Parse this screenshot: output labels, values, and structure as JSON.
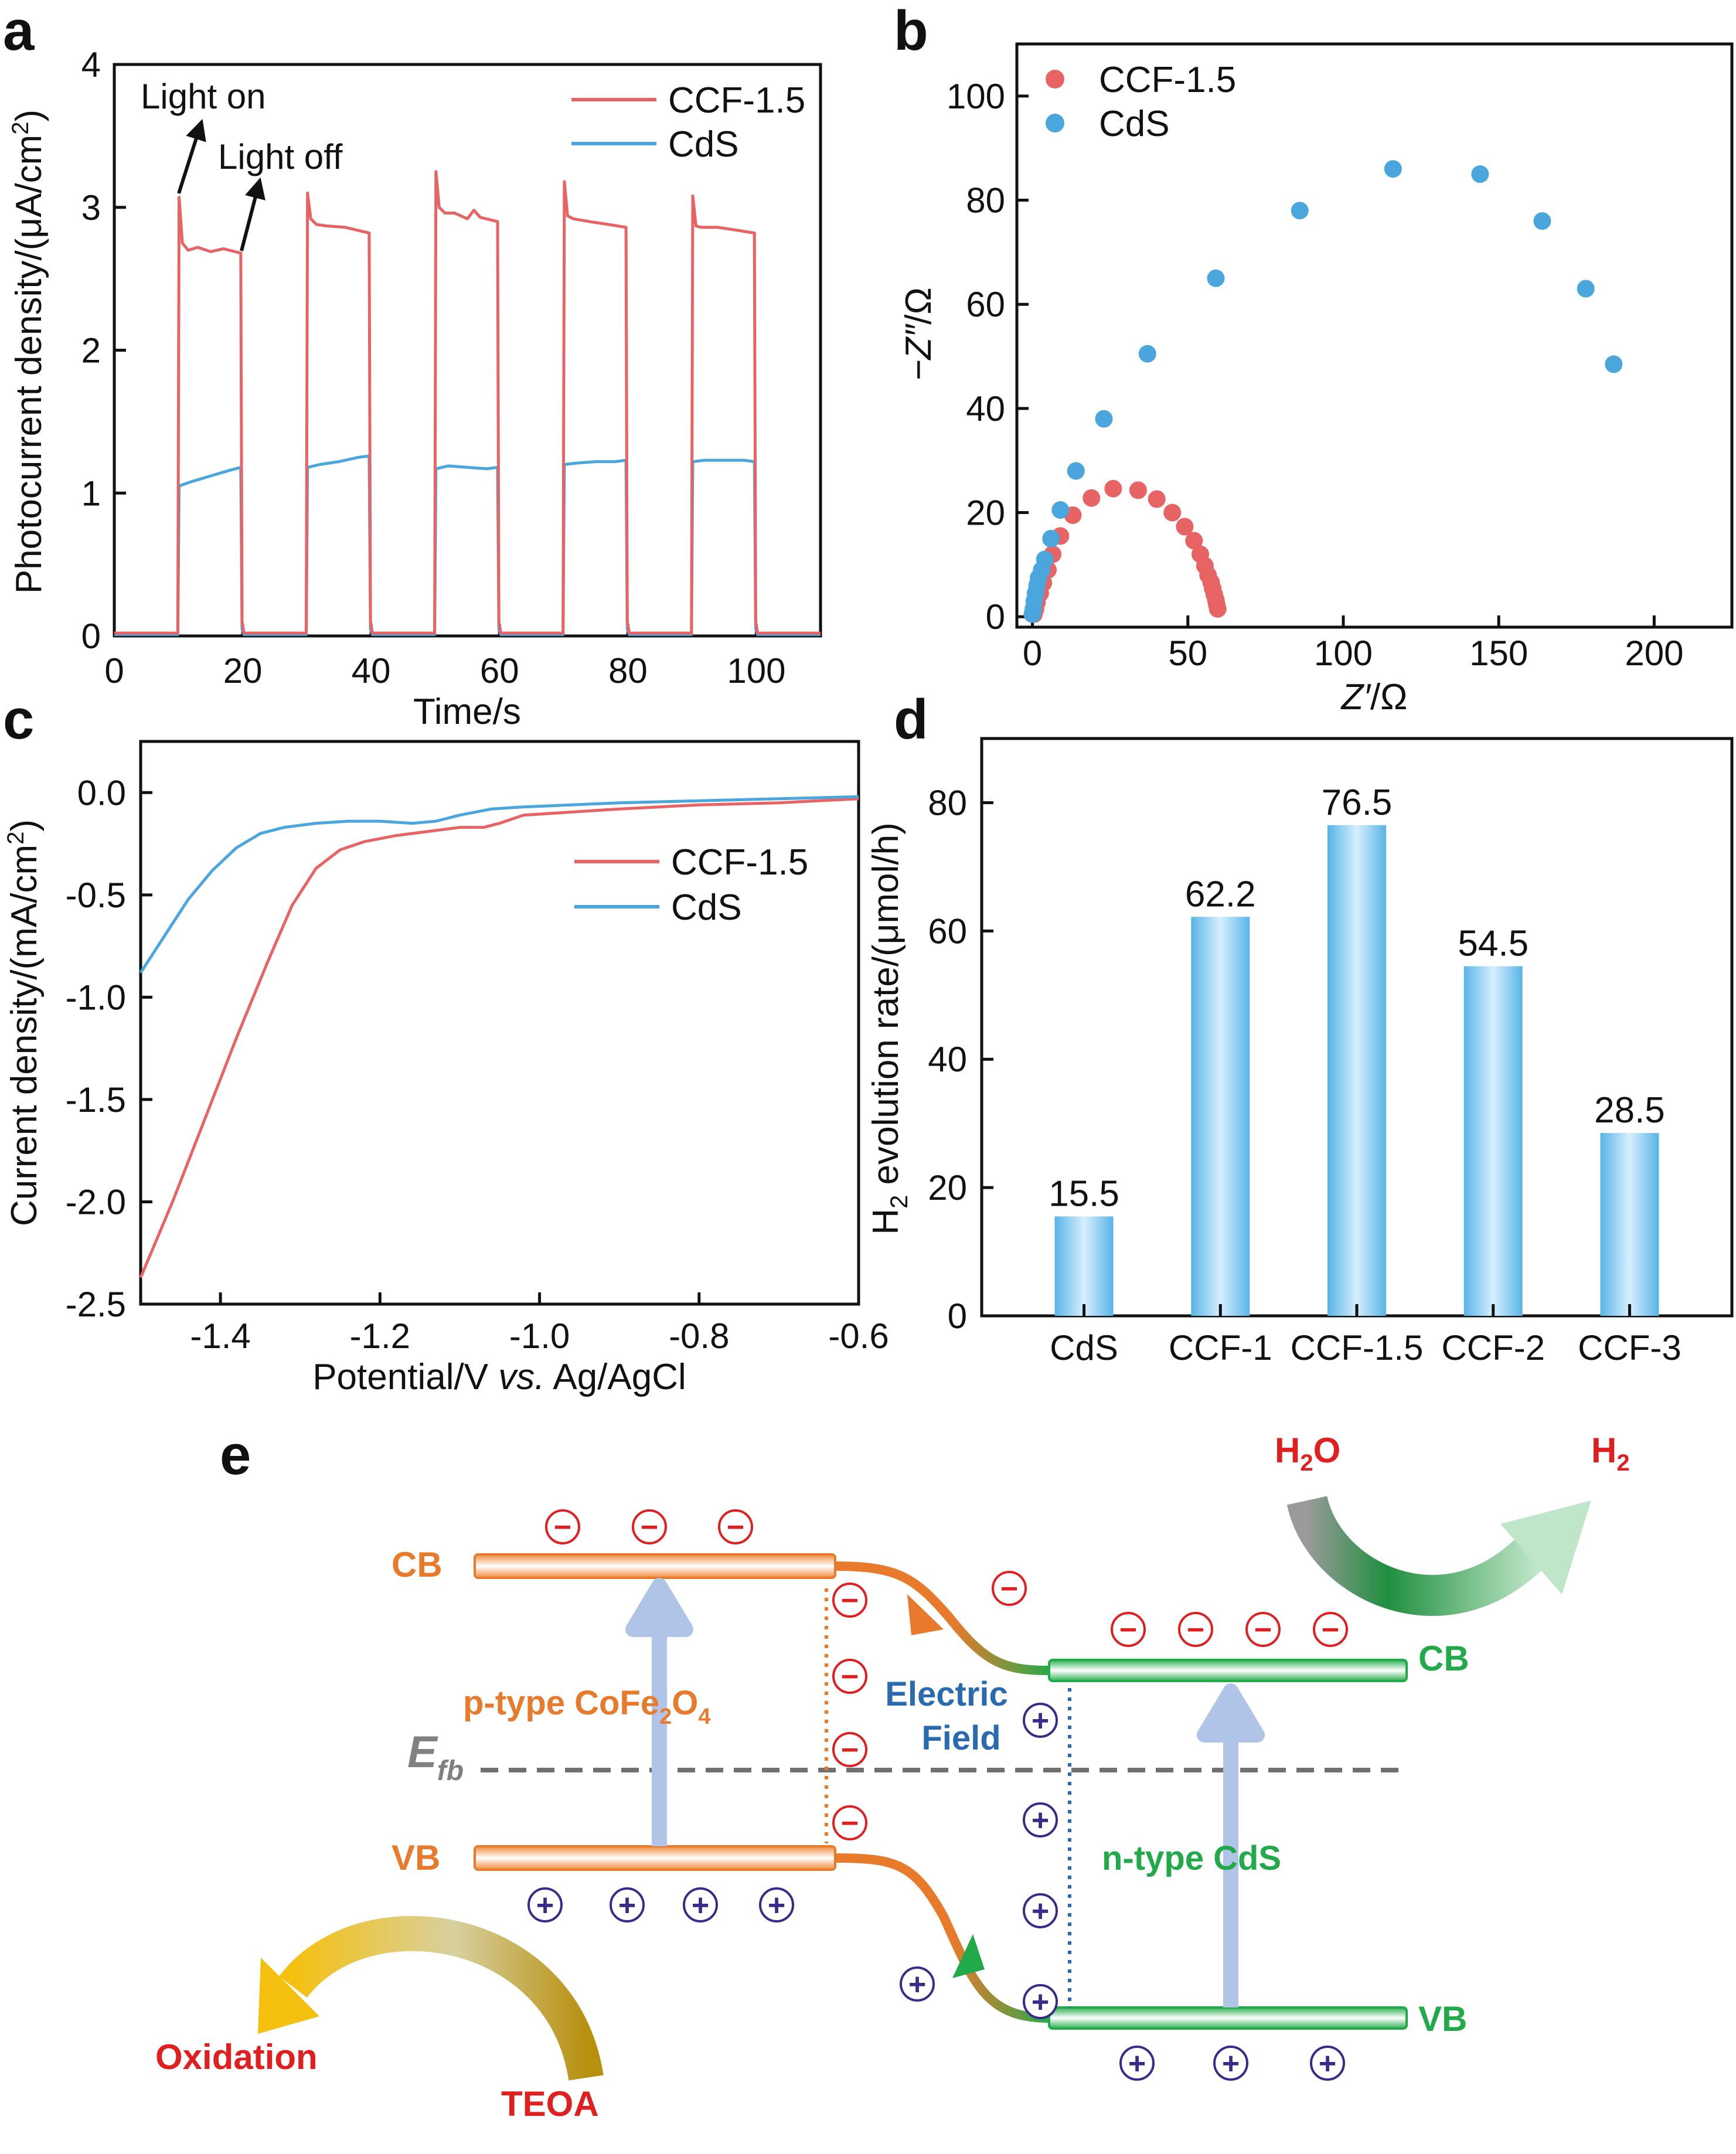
{
  "chart_data": [
    {
      "panel": "a",
      "type": "line",
      "xlabel": "Time/s",
      "ylabel_main": "Photocurrent density/(μA/cm",
      "ylabel_sup": "2",
      "ylabel_end": ")",
      "xlim": [
        0,
        110
      ],
      "ylim": [
        0,
        4
      ],
      "xticks": [
        0,
        20,
        40,
        60,
        80,
        100
      ],
      "yticks": [
        0,
        1,
        2,
        3,
        4
      ],
      "annotations": [
        "Light on",
        "Light off"
      ],
      "series": [
        {
          "name": "CCF-1.5",
          "color": "#e86464",
          "x": [
            0,
            9.9,
            10.1,
            10.6,
            11.5,
            13,
            15,
            17,
            19.7,
            19.9,
            20.2,
            29.9,
            30.1,
            30.6,
            31.5,
            33,
            36,
            39.7,
            39.9,
            40.2,
            49.9,
            50.1,
            50.6,
            51.5,
            53,
            55,
            56,
            57,
            59.7,
            59.9,
            60.2,
            69.9,
            70.1,
            70.6,
            71.5,
            74,
            77,
            79.7,
            79.9,
            80.2,
            89.9,
            90.1,
            90.6,
            91.5,
            94,
            97,
            99.7,
            99.9,
            100.2,
            110
          ],
          "y": [
            0.02,
            0.02,
            3.07,
            2.75,
            2.7,
            2.72,
            2.69,
            2.71,
            2.68,
            0.1,
            0.02,
            0.02,
            3.1,
            2.92,
            2.88,
            2.87,
            2.86,
            2.82,
            0.1,
            0.02,
            0.02,
            3.25,
            3.0,
            2.96,
            2.96,
            2.92,
            2.98,
            2.93,
            2.9,
            0.1,
            0.02,
            0.02,
            3.18,
            2.94,
            2.92,
            2.9,
            2.88,
            2.86,
            0.1,
            0.02,
            0.02,
            3.08,
            2.87,
            2.86,
            2.86,
            2.84,
            2.82,
            0.1,
            0.02,
            0.02
          ]
        },
        {
          "name": "CdS",
          "color": "#4aa6dc",
          "x": [
            0,
            9.9,
            10.1,
            12,
            15,
            18,
            19.7,
            19.9,
            20.2,
            29.9,
            30.1,
            32,
            35,
            38,
            39.7,
            39.9,
            40.2,
            49.9,
            50.1,
            52,
            55,
            58,
            59.7,
            59.9,
            60.2,
            69.9,
            70.1,
            72,
            75,
            78,
            79.7,
            79.9,
            80.2,
            89.9,
            90.1,
            92,
            95,
            98,
            99.7,
            99.9,
            100.2,
            110
          ],
          "y": [
            0.01,
            0.01,
            1.05,
            1.08,
            1.12,
            1.16,
            1.18,
            0.05,
            0.01,
            0.01,
            1.18,
            1.2,
            1.22,
            1.25,
            1.26,
            0.05,
            0.01,
            0.01,
            1.17,
            1.19,
            1.18,
            1.17,
            1.18,
            0.05,
            0.01,
            0.01,
            1.2,
            1.21,
            1.22,
            1.22,
            1.23,
            0.05,
            0.01,
            0.01,
            1.22,
            1.23,
            1.23,
            1.23,
            1.22,
            0.05,
            0.01,
            0.01
          ]
        }
      ]
    },
    {
      "panel": "b",
      "type": "scatter",
      "xlabel_main": "Z′",
      "xlabel_unit": "/Ω",
      "ylabel_main": "−Z″",
      "ylabel_unit": "/Ω",
      "xlim": [
        -5,
        225
      ],
      "ylim": [
        -2,
        110
      ],
      "xticks": [
        0,
        50,
        100,
        150,
        200
      ],
      "yticks": [
        0,
        20,
        40,
        60,
        80,
        100
      ],
      "series": [
        {
          "name": "CCF-1.5",
          "color": "#e86464",
          "x": [
            0.5,
            1,
            1.5,
            2.5,
            3.5,
            5,
            6.5,
            9,
            13,
            19,
            26,
            34,
            40,
            45,
            49,
            52,
            54,
            55.5,
            56.5,
            57.5,
            58,
            58.5,
            59,
            59.3,
            59.6
          ],
          "y": [
            0.5,
            1.5,
            2.8,
            4.5,
            6.5,
            9,
            12,
            15.5,
            19.5,
            22.8,
            24.6,
            24.3,
            22.6,
            20,
            17.3,
            14.6,
            12,
            9.8,
            8,
            6.6,
            5.4,
            4.3,
            3.2,
            2.3,
            1.5
          ]
        },
        {
          "name": "CdS",
          "color": "#4aa6dc",
          "x": [
            0,
            0.3,
            0.6,
            1,
            1.5,
            2,
            3,
            4,
            6,
            9,
            14,
            23,
            37,
            59,
            86,
            116,
            144,
            164,
            178,
            187
          ],
          "y": [
            0.5,
            1.5,
            3,
            4.5,
            6,
            7.5,
            9,
            11,
            15,
            20.5,
            28,
            38,
            50.5,
            65,
            78,
            86,
            85,
            76,
            63,
            48.5
          ]
        }
      ]
    },
    {
      "panel": "c",
      "type": "line",
      "xlabel_pre": "Potential/V ",
      "xlabel_it": "vs.",
      "xlabel_post": " Ag/AgCl",
      "ylabel_main": "Current density/(mA/cm",
      "ylabel_sup": "2",
      "ylabel_end": ")",
      "xlim": [
        -1.5,
        -0.6
      ],
      "ylim": [
        -2.5,
        0.25
      ],
      "xticks": [
        -1.4,
        -1.2,
        -1.0,
        -0.8,
        -0.6
      ],
      "xtick_labels": [
        "-1.4",
        "-1.2",
        "-1.0",
        "-0.8",
        "-0.6"
      ],
      "yticks": [
        0.0,
        -0.5,
        -1.0,
        -1.5,
        -2.0,
        -2.5
      ],
      "ytick_labels": [
        "0.0",
        "-0.5",
        "-1.0",
        "-1.5",
        "-2.0",
        "-2.5"
      ],
      "series": [
        {
          "name": "CCF-1.5",
          "color": "#e86464",
          "x": [
            -1.5,
            -1.46,
            -1.42,
            -1.38,
            -1.34,
            -1.31,
            -1.28,
            -1.25,
            -1.22,
            -1.18,
            -1.14,
            -1.1,
            -1.07,
            -1.05,
            -1.02,
            -0.98,
            -0.9,
            -0.8,
            -0.7,
            -0.6
          ],
          "y": [
            -2.37,
            -2.0,
            -1.6,
            -1.2,
            -0.82,
            -0.55,
            -0.37,
            -0.28,
            -0.24,
            -0.21,
            -0.19,
            -0.17,
            -0.17,
            -0.15,
            -0.11,
            -0.1,
            -0.08,
            -0.06,
            -0.05,
            -0.03
          ]
        },
        {
          "name": "CdS",
          "color": "#4aa6dc",
          "x": [
            -1.5,
            -1.47,
            -1.44,
            -1.41,
            -1.38,
            -1.35,
            -1.32,
            -1.28,
            -1.24,
            -1.2,
            -1.16,
            -1.13,
            -1.1,
            -1.06,
            -1.02,
            -0.96,
            -0.9,
            -0.8,
            -0.7,
            -0.6
          ],
          "y": [
            -0.88,
            -0.7,
            -0.52,
            -0.38,
            -0.27,
            -0.2,
            -0.17,
            -0.15,
            -0.14,
            -0.14,
            -0.15,
            -0.14,
            -0.11,
            -0.08,
            -0.07,
            -0.06,
            -0.05,
            -0.04,
            -0.03,
            -0.02
          ]
        }
      ]
    },
    {
      "panel": "d",
      "type": "bar",
      "ylabel_pre": "H",
      "ylabel_sub": "2",
      "ylabel_post": " evolution rate/(μmol/h)",
      "ylim": [
        0,
        90
      ],
      "yticks": [
        0,
        20,
        40,
        60,
        80
      ],
      "categories": [
        "CdS",
        "CCF-1",
        "CCF-1.5",
        "CCF-2",
        "CCF-3"
      ],
      "values": [
        15.5,
        62.2,
        76.5,
        54.5,
        28.5
      ],
      "value_labels": [
        "15.5",
        "62.2",
        "76.5",
        "54.5",
        "28.5"
      ],
      "color": "#5cb8e8"
    }
  ],
  "panel_labels": {
    "a": "a",
    "b": "b",
    "c": "c",
    "d": "d",
    "e": "e"
  },
  "diagram_e": {
    "cb": "CB",
    "vb": "VB",
    "p_type_pre": "p-type CoFe",
    "p_sub1": "2",
    "p_mid": "O",
    "p_sub2": "4",
    "n_type": "n-type CdS",
    "efb_main": "E",
    "efb_sub": "fb",
    "electric": "Electric",
    "field": "Field",
    "h2o_main": "H",
    "h2o_sub": "2",
    "h2o_end": "O",
    "h2_main": "H",
    "h2_sub": "2",
    "oxidation": "Oxidation",
    "teoa": "TEOA",
    "electron_sign": "−",
    "hole_sign": "+",
    "colors": {
      "orange": "#e87a2c",
      "green": "#22aa4a",
      "blue": "#2a6ab0",
      "red": "#e02020",
      "purple": "#3a2a8a",
      "gray": "#808080"
    }
  }
}
